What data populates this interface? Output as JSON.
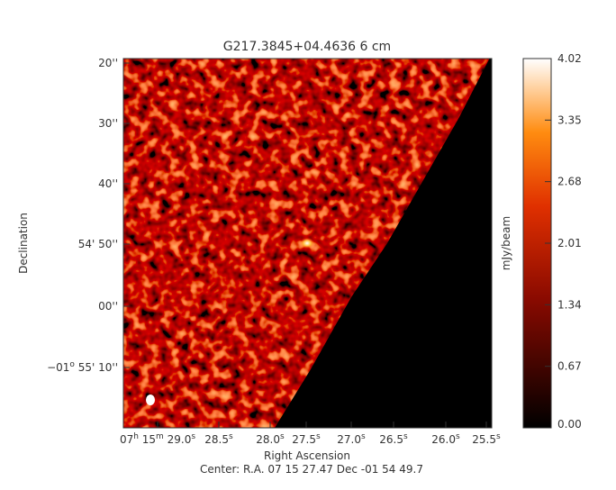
{
  "chart_data": {
    "type": "image",
    "title": "G217.3845+04.4636 6 cm",
    "xlabel": "Right Ascension",
    "ylabel": "Declination",
    "footer": "Center:  R.A. 07 15 27.47     Dec  -01 54 49.7",
    "xtick_labels": [
      [
        {
          "text": "07"
        },
        {
          "text": "h",
          "sup": true
        },
        {
          "text": " 15"
        },
        {
          "text": "m",
          "sup": true
        },
        {
          "text": " 29.0"
        },
        {
          "text": "s",
          "sup": true
        }
      ],
      [
        {
          "text": "28.5"
        },
        {
          "text": "s",
          "sup": true
        }
      ],
      [
        {
          "text": "28.0"
        },
        {
          "text": "s",
          "sup": true
        }
      ],
      [
        {
          "text": "27.5"
        },
        {
          "text": "s",
          "sup": true
        }
      ],
      [
        {
          "text": "27.0"
        },
        {
          "text": "s",
          "sup": true
        }
      ],
      [
        {
          "text": "26.5"
        },
        {
          "text": "s",
          "sup": true
        }
      ],
      [
        {
          "text": "26.0"
        },
        {
          "text": "s",
          "sup": true
        }
      ],
      [
        {
          "text": "25.5"
        },
        {
          "text": "s",
          "sup": true
        }
      ]
    ],
    "ytick_labels": [
      [
        {
          "text": "20''"
        }
      ],
      [
        {
          "text": "30''"
        }
      ],
      [
        {
          "text": "40''"
        }
      ],
      [
        {
          "text": "54' 50''"
        }
      ],
      [
        {
          "text": "00''"
        }
      ],
      [
        {
          "text": "−01"
        },
        {
          "text": "o",
          "sup": true
        },
        {
          "text": " 55' 10''"
        }
      ]
    ],
    "colorbar": {
      "label": "mJy/beam",
      "lim": [
        0,
        4.02
      ],
      "ticks": [
        {
          "value": 0,
          "label": "0.00"
        },
        0.67,
        1.34,
        2.01,
        2.68,
        3.35,
        4.02
      ]
    }
  }
}
